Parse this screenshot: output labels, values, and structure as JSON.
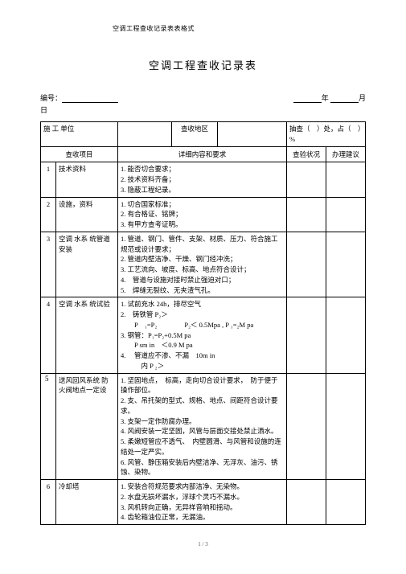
{
  "doc_header": "空调工程查收记录表表格式",
  "title": "空调工程查收记录表",
  "meta": {
    "code_label": "编号：",
    "year_suffix": "年",
    "month_suffix": "月",
    "day_label": "日"
  },
  "row_top": {
    "unit_label": "施 工 单位",
    "area_label": "查收地区",
    "sample_label": "抽查（　）处，占（　）%"
  },
  "headers": {
    "item": "查收项目",
    "detail": "详细内容和要求",
    "status": "查验状况",
    "suggest": "办理建议"
  },
  "rows": [
    {
      "n": "1",
      "item": "技术资料",
      "detail": "1. 能否切合要求；\n2. 技术资料齐备；\n3. 隐蔽工程纪录。"
    },
    {
      "n": "2",
      "item": "设施，资料",
      "detail": "1. 切合国家标准；\n2. 有合格证、铭牌；\n3. 有甲方查考证明。"
    },
    {
      "n": "3",
      "item": "空调 水系 统管道安装",
      "detail": "1. 管道、钢门、管件、支架、材质、压力、符合施工规范或设计要求；\n2. 管道内壁洁净、干燥、钢门经冲洗；\n3. 工艺流向、坡度、标高、地点符合设计；\n4.　管道与设施对接时禁止强迫对口；\n5.　焊缝无裂纹、无夹渣气孔。"
    },
    {
      "n": "4",
      "item": "空调 水系 统试验",
      "detail": "1. 试前充水 24h，排尽空气\n2.　铸铁管 P₂＞\n　　P　₁=P₂　　　　P₂＜ 0.5Mpa , P ₁=₂M pa\n3. 钢管：P₁=P₂+0.5M pa\n　　P sm in　＜0.9 M pa\n4.　 管道应不渗、不漏　10m in\n　　　内 P ₂＞"
    },
    {
      "n": "",
      "item": "送风回风系统 防火阀地点一定设",
      "detail": "1. 坚固地点，　标高，走向切合设计要求，　防于便于操作部位。\n2. 支、吊托架的型式、规格、地点、间距符合设计要求。\n3. 支架一定作防腐办理。\n4. 风阀安装一定坚固，风管与层面交接处禁止洒水。\n5. 柔嫩短管应不透气、　内壁圆滑、与风管和设施的连结处一定严实。\n6. 风管、静压箱安装后内壁洁净、无浮灰、油污、锈蚀、染物。",
      "margin": "5"
    },
    {
      "n": "6",
      "item": "冷却塔",
      "detail": "1. 安装合符规范要求内部洁净、无染物。\n2. 水盘无损坏漏水，浮球个灵巧不漏水。\n3. 风机转向正确，无异样音响和摇动。\n4. 齿轮箱油位正常，无漏油。"
    }
  ],
  "page_num": "1 / 3"
}
